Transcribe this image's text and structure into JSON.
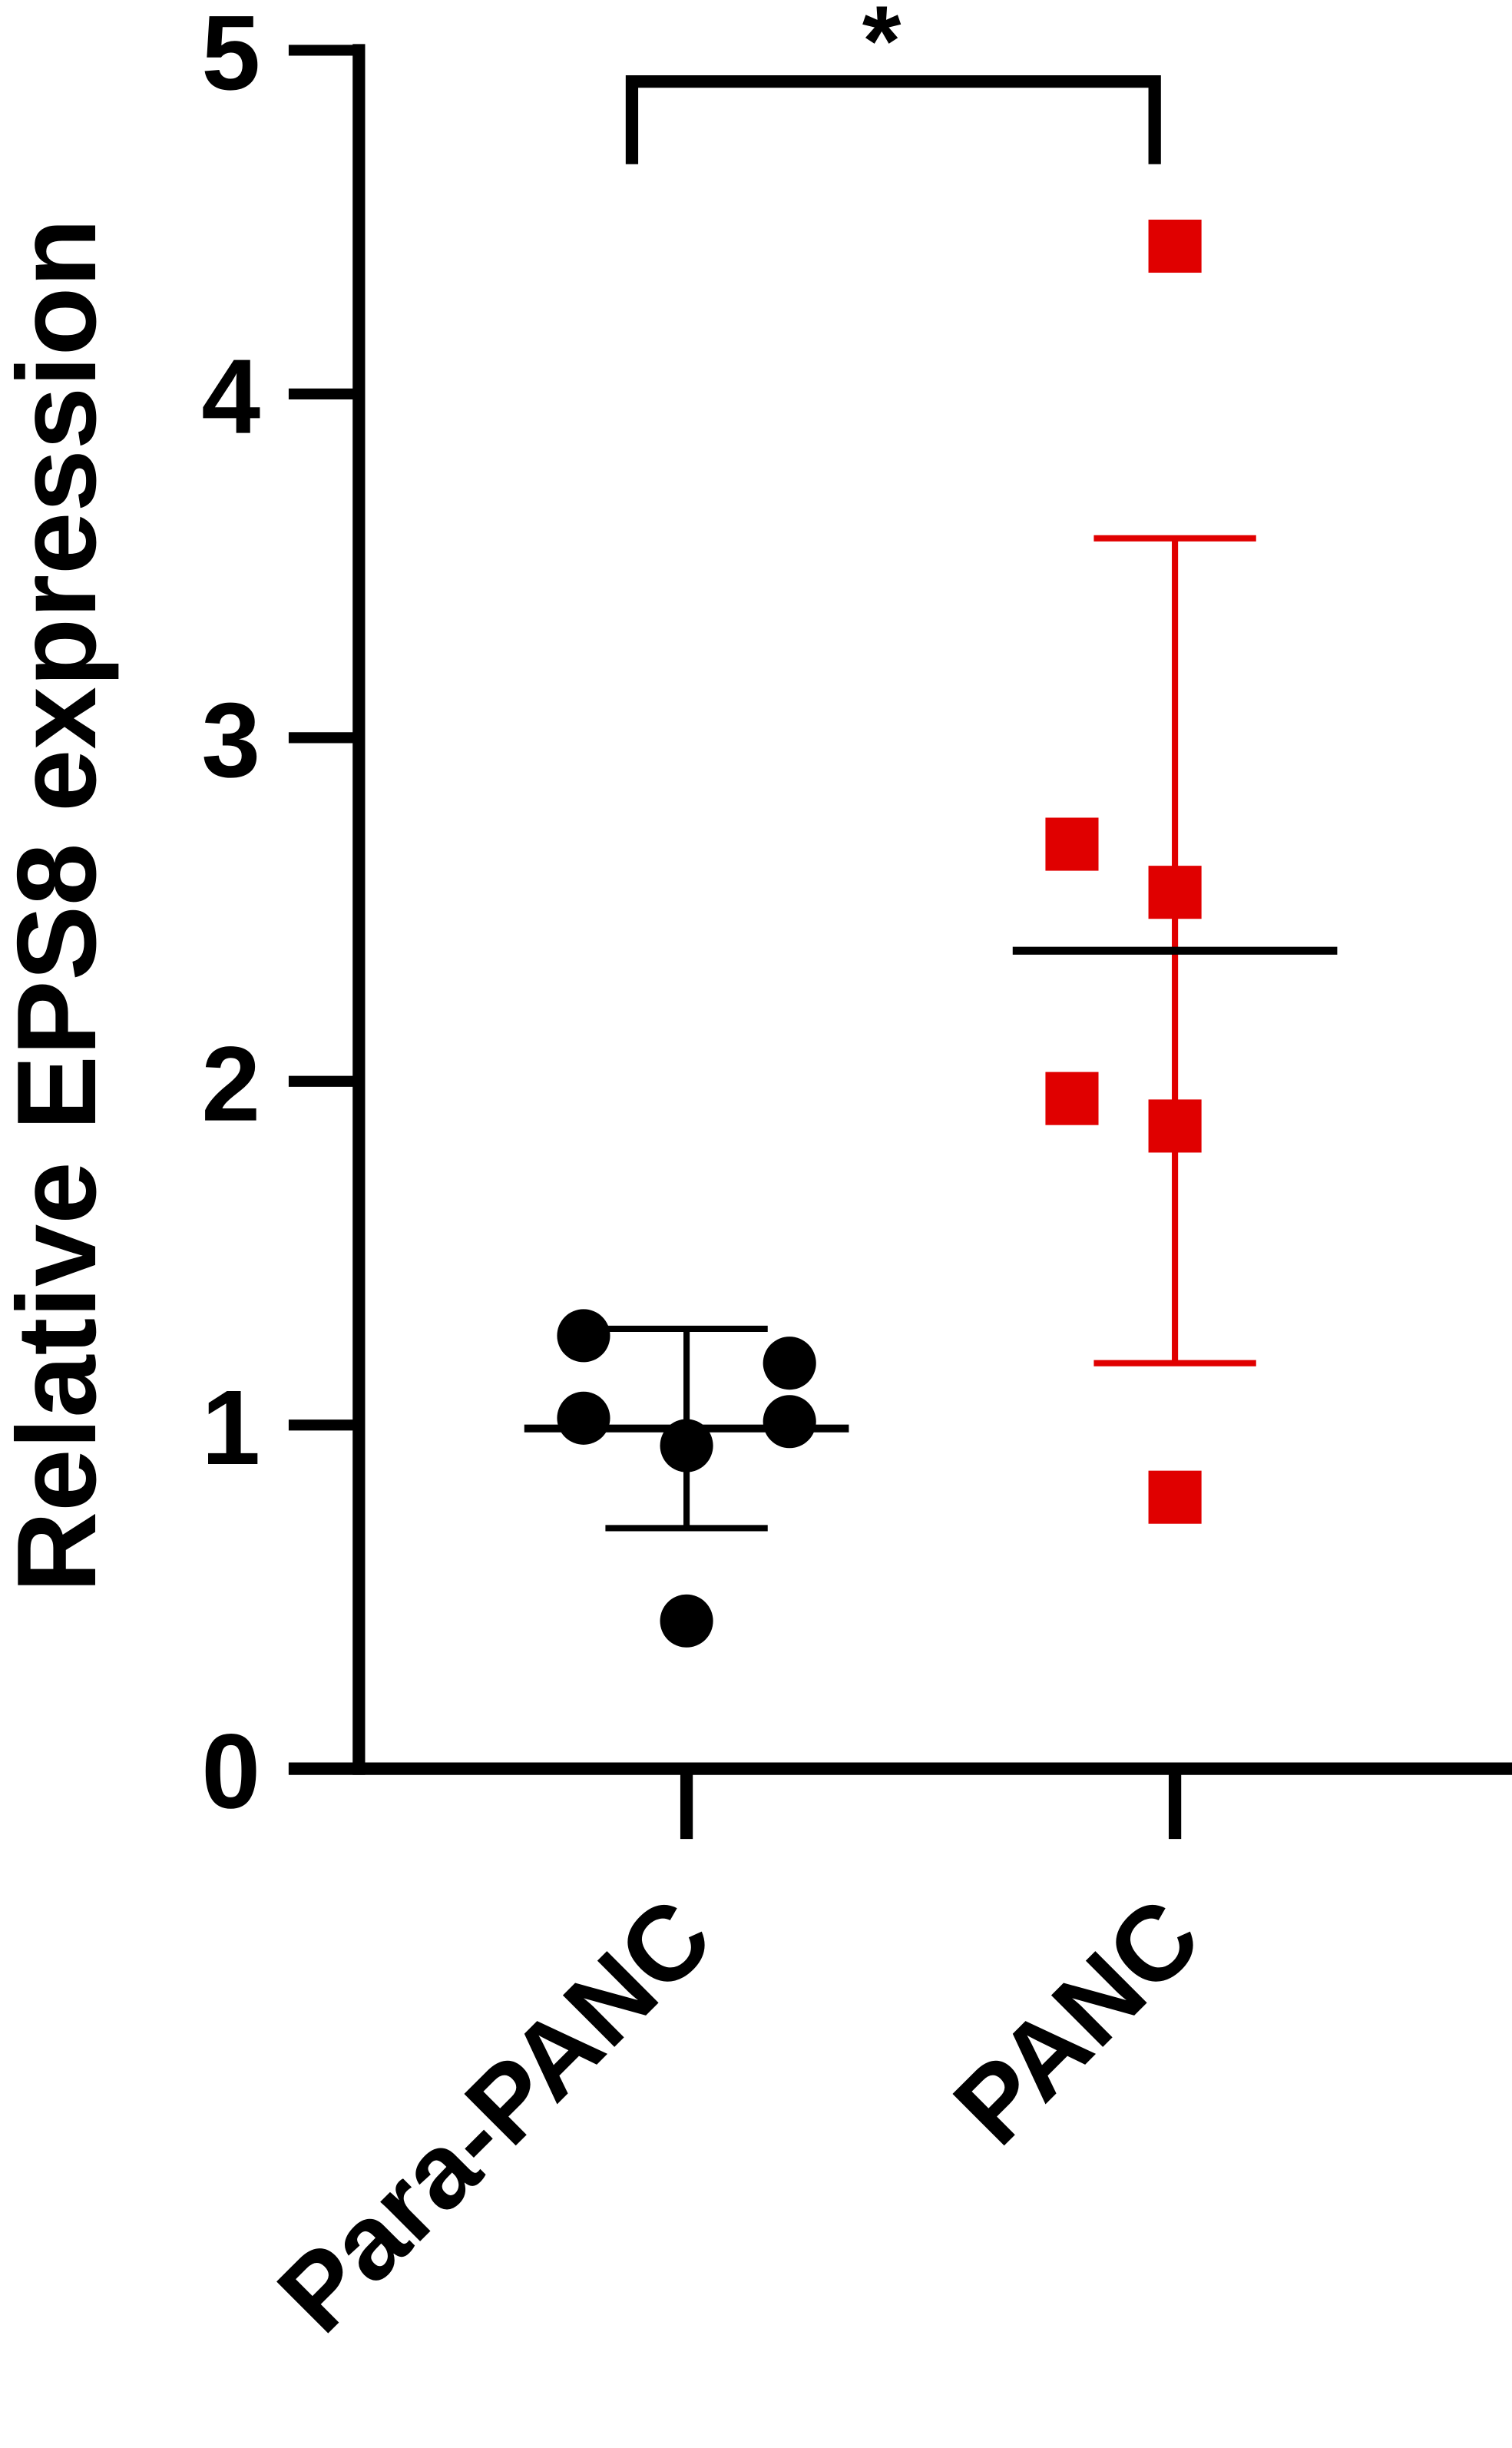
{
  "chart_data": {
    "type": "scatter",
    "y_label": "Relative EPS8 expression",
    "categories": [
      "Para-PANC",
      "PANC"
    ],
    "series": [
      {
        "name": "Para-PANC",
        "color": "#000000",
        "values": [
          1.26,
          1.02,
          1.18,
          1.01,
          0.94,
          0.43
        ],
        "mean": 0.99,
        "error": 0.29
      },
      {
        "name": "PANC",
        "color": "#e00000",
        "values": [
          4.43,
          2.69,
          2.55,
          1.95,
          1.87,
          0.79
        ],
        "mean": 2.38,
        "error": 1.2
      }
    ],
    "annotation": "*",
    "ylim": [
      0,
      5
    ],
    "yticks": [
      0,
      1,
      2,
      3,
      4,
      5
    ]
  }
}
